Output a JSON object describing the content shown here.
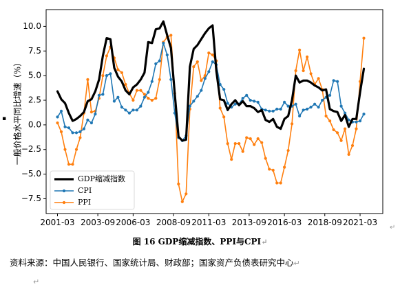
{
  "chart_data": {
    "type": "line",
    "ylabel": "一般价格水平同比增速（%）",
    "ylim": [
      -9.0,
      11.7
    ],
    "yticks": [
      -7.5,
      -5.0,
      -2.5,
      0.0,
      2.5,
      5.0,
      7.5,
      10.0
    ],
    "yticklabels": [
      "−7.5",
      "−5.0",
      "−2.5",
      "0.0",
      "2.5",
      "5.0",
      "7.5",
      "10.0"
    ],
    "xlim": [
      2000.25,
      2022.5
    ],
    "xticks": [
      2001.0,
      2003.667,
      2006.0,
      2008.667,
      2011.0,
      2013.667,
      2016.0,
      2018.667,
      2021.0
    ],
    "xticklabels": [
      "2001-03",
      "2003-09",
      "2006-03",
      "2008-09",
      "2011-03",
      "2013-09",
      "2016-03",
      "2018-09",
      "2021-03"
    ],
    "grid": false,
    "legend_position": "lower-left",
    "series": [
      {
        "name": "GDP缩减指数",
        "color": "#000000",
        "x": [
          2001.0,
          2001.25,
          2001.5,
          2001.75,
          2002.0,
          2002.25,
          2002.5,
          2002.75,
          2003.0,
          2003.25,
          2003.5,
          2003.75,
          2004.0,
          2004.25,
          2004.5,
          2004.75,
          2005.0,
          2005.25,
          2005.5,
          2005.75,
          2006.0,
          2006.25,
          2006.5,
          2006.75,
          2007.0,
          2007.25,
          2007.5,
          2007.75,
          2008.0,
          2008.25,
          2008.5,
          2008.75,
          2009.0,
          2009.25,
          2009.5,
          2009.75,
          2010.0,
          2010.25,
          2010.5,
          2010.75,
          2011.0,
          2011.25,
          2011.5,
          2011.75,
          2012.0,
          2012.25,
          2012.5,
          2012.75,
          2013.0,
          2013.25,
          2013.5,
          2013.75,
          2014.0,
          2014.25,
          2014.5,
          2014.75,
          2015.0,
          2015.25,
          2015.5,
          2015.75,
          2016.0,
          2016.25,
          2016.5,
          2016.75,
          2017.0,
          2017.25,
          2017.5,
          2017.75,
          2018.0,
          2018.25,
          2018.5,
          2018.75,
          2019.0,
          2019.25,
          2019.5,
          2019.75,
          2020.0,
          2020.25,
          2020.5,
          2020.75,
          2021.0,
          2021.25
        ],
        "values": [
          3.4,
          2.6,
          2.2,
          1.2,
          0.4,
          0.6,
          0.9,
          1.3,
          2.4,
          2.6,
          3.4,
          4.6,
          7.0,
          8.8,
          8.7,
          5.8,
          4.9,
          4.4,
          3.5,
          3.1,
          3.8,
          4.1,
          4.6,
          5.3,
          8.4,
          8.3,
          9.7,
          9.8,
          10.5,
          9.1,
          7.8,
          3.2,
          -1.2,
          -1.6,
          -1.5,
          5.9,
          7.7,
          8.1,
          8.7,
          9.3,
          9.8,
          10.1,
          5.5,
          2.6,
          2.5,
          1.5,
          2.1,
          2.5,
          2.0,
          2.4,
          1.9,
          1.9,
          1.7,
          1.3,
          1.5,
          0.5,
          0.3,
          0.6,
          -0.2,
          -0.4,
          0.6,
          0.9,
          2.5,
          5.0,
          4.3,
          4.5,
          4.5,
          4.3,
          4.0,
          3.8,
          3.5,
          3.6,
          1.6,
          1.4,
          1.3,
          0.4,
          1.0,
          -0.2,
          0.6,
          0.6,
          3.3,
          5.7
        ]
      },
      {
        "name": "CPI",
        "color": "#1f77b4",
        "x": [
          2001.0,
          2001.25,
          2001.5,
          2001.75,
          2002.0,
          2002.25,
          2002.5,
          2002.75,
          2003.0,
          2003.25,
          2003.5,
          2003.75,
          2004.0,
          2004.25,
          2004.5,
          2004.75,
          2005.0,
          2005.25,
          2005.5,
          2005.75,
          2006.0,
          2006.25,
          2006.5,
          2006.75,
          2007.0,
          2007.25,
          2007.5,
          2007.75,
          2008.0,
          2008.25,
          2008.5,
          2008.75,
          2009.0,
          2009.25,
          2009.5,
          2009.75,
          2010.0,
          2010.25,
          2010.5,
          2010.75,
          2011.0,
          2011.25,
          2011.5,
          2011.75,
          2012.0,
          2012.25,
          2012.5,
          2012.75,
          2013.0,
          2013.25,
          2013.5,
          2013.75,
          2014.0,
          2014.25,
          2014.5,
          2014.75,
          2015.0,
          2015.25,
          2015.5,
          2015.75,
          2016.0,
          2016.25,
          2016.5,
          2016.75,
          2017.0,
          2017.25,
          2017.5,
          2017.75,
          2018.0,
          2018.25,
          2018.5,
          2018.75,
          2019.0,
          2019.25,
          2019.5,
          2019.75,
          2020.0,
          2020.25,
          2020.5,
          2020.75,
          2021.0,
          2021.25
        ],
        "values": [
          0.8,
          1.4,
          -0.2,
          -0.3,
          -0.8,
          -0.8,
          -0.7,
          -0.4,
          0.5,
          0.2,
          1.1,
          3.0,
          3.1,
          5.0,
          5.2,
          2.4,
          2.8,
          1.8,
          1.5,
          1.2,
          1.5,
          1.5,
          1.9,
          2.8,
          3.3,
          4.4,
          6.2,
          6.5,
          8.3,
          7.1,
          4.6,
          1.2,
          -1.3,
          -1.6,
          -1.1,
          1.9,
          2.4,
          2.9,
          3.5,
          4.7,
          5.4,
          6.4,
          6.1,
          4.1,
          3.6,
          2.2,
          1.8,
          2.1,
          2.1,
          2.7,
          3.0,
          2.5,
          2.4,
          2.3,
          1.6,
          1.5,
          1.4,
          1.4,
          1.6,
          1.6,
          2.3,
          1.9,
          1.9,
          2.1,
          0.9,
          1.5,
          1.6,
          1.8,
          2.1,
          1.8,
          2.5,
          2.8,
          3.0,
          4.5,
          4.4,
          1.9,
          1.2,
          0.5,
          0.3,
          0.3,
          0.4,
          1.1
        ]
      },
      {
        "name": "PPI",
        "color": "#ff7f0e",
        "x": [
          2001.0,
          2001.25,
          2001.5,
          2001.75,
          2002.0,
          2002.25,
          2002.5,
          2002.75,
          2003.0,
          2003.25,
          2003.5,
          2003.75,
          2004.0,
          2004.25,
          2004.5,
          2004.75,
          2005.0,
          2005.25,
          2005.5,
          2005.75,
          2006.0,
          2006.25,
          2006.5,
          2006.75,
          2007.0,
          2007.25,
          2007.5,
          2007.75,
          2008.0,
          2008.25,
          2008.5,
          2008.75,
          2009.0,
          2009.25,
          2009.5,
          2009.75,
          2010.0,
          2010.25,
          2010.5,
          2010.75,
          2011.0,
          2011.25,
          2011.5,
          2011.75,
          2012.0,
          2012.25,
          2012.5,
          2012.75,
          2013.0,
          2013.25,
          2013.5,
          2013.75,
          2014.0,
          2014.25,
          2014.5,
          2014.75,
          2015.0,
          2015.25,
          2015.5,
          2015.75,
          2016.0,
          2016.25,
          2016.5,
          2016.75,
          2017.0,
          2017.25,
          2017.5,
          2017.75,
          2018.0,
          2018.25,
          2018.5,
          2018.75,
          2019.0,
          2019.25,
          2019.5,
          2019.75,
          2020.0,
          2020.25,
          2020.5,
          2020.75,
          2021.0,
          2021.25
        ],
        "values": [
          0.2,
          -0.7,
          -2.5,
          -4.0,
          -4.0,
          -2.5,
          -1.3,
          1.2,
          4.6,
          1.3,
          1.4,
          2.7,
          5.0,
          7.0,
          7.9,
          6.8,
          5.6,
          5.3,
          4.1,
          3.2,
          2.5,
          3.5,
          3.5,
          3.1,
          2.7,
          2.5,
          2.7,
          4.6,
          8.4,
          8.9,
          9.1,
          3.2,
          -6.0,
          -7.8,
          -7.0,
          1.6,
          5.9,
          6.4,
          4.5,
          5.0,
          7.3,
          7.1,
          6.5,
          1.7,
          0.8,
          -1.9,
          -3.5,
          -1.9,
          -1.9,
          -2.7,
          -1.3,
          -1.4,
          -2.0,
          -1.4,
          -1.8,
          -3.4,
          -4.5,
          -4.6,
          -5.9,
          -5.9,
          -4.3,
          -2.6,
          0.1,
          5.5,
          7.6,
          5.5,
          6.9,
          5.2,
          4.1,
          4.7,
          3.6,
          0.9,
          0.4,
          -0.5,
          -0.8,
          -1.6,
          -0.4,
          -3.0,
          -2.1,
          -0.4,
          4.4,
          8.8
        ]
      }
    ]
  },
  "caption": "图  16 GDP缩减指数、PPI与CPI",
  "source": "资料来源：中国人民银行、国家统计局、财政部；国家资产负债表研究中心",
  "paragraph_mark": "↵"
}
